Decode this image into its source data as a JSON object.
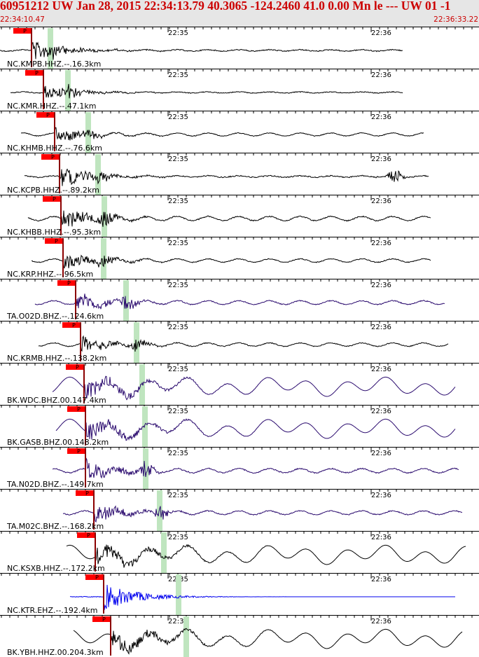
{
  "header": {
    "title": "60951212 UW Jan 28, 2015 22:34:13.79   40.3065 -124.2460 41.0 0.00 Mn le --- UW 01  -1",
    "start_time": "22:34:10.47",
    "end_time": "22:36:33.22"
  },
  "time_ticks": [
    "22:35",
    "22:36"
  ],
  "pick_phase": "P",
  "colors": {
    "header_bg": "#e6e6e6",
    "header_text": "#cc0000",
    "pick_flag": "#ff0000",
    "s_window": "#bfe5bf",
    "trace_black": "#000000",
    "trace_purple": "#2a0a6e",
    "trace_blue": "#0000ee"
  },
  "traces": [
    {
      "label": "NC.KMPB.HHZ.--.16.3km",
      "color": "black",
      "kind": "event"
    },
    {
      "label": "NC.KMR.HHZ.--.47.1km",
      "color": "black",
      "kind": "event"
    },
    {
      "label": "NC.KHMB.HHZ.--.76.6km",
      "color": "black",
      "kind": "noisy"
    },
    {
      "label": "NC.KCPB.HHZ.--.89.2km",
      "color": "black",
      "kind": "event2"
    },
    {
      "label": "NC.KHBB.HHZ.--.95.3km",
      "color": "black",
      "kind": "noisy"
    },
    {
      "label": "NC.KRP.HHZ.--.96.5km",
      "color": "black",
      "kind": "noisy"
    },
    {
      "label": "TA.O02D.BHZ.--.124.6km",
      "color": "purple",
      "kind": "noisy"
    },
    {
      "label": "NC.KRMB.HHZ.--.138.2km",
      "color": "black",
      "kind": "noisy"
    },
    {
      "label": "BK.WDC.BHZ.00.147.4km",
      "color": "purple",
      "kind": "wave"
    },
    {
      "label": "BK.GASB.BHZ.00.148.2km",
      "color": "purple",
      "kind": "wave"
    },
    {
      "label": "TA.N02D.BHZ.--.149.7km",
      "color": "purple",
      "kind": "noisy"
    },
    {
      "label": "TA.M02C.BHZ.--.168.2km",
      "color": "purple",
      "kind": "noisy"
    },
    {
      "label": "NC.KSXB.HHZ.--.172.2km",
      "color": "black",
      "kind": "wave"
    },
    {
      "label": "NC.KTR.EHZ.--.192.4km",
      "color": "blue",
      "kind": "blue"
    },
    {
      "label": "BK.YBH.HHZ.00.204.3km",
      "color": "black",
      "kind": "wave"
    }
  ]
}
